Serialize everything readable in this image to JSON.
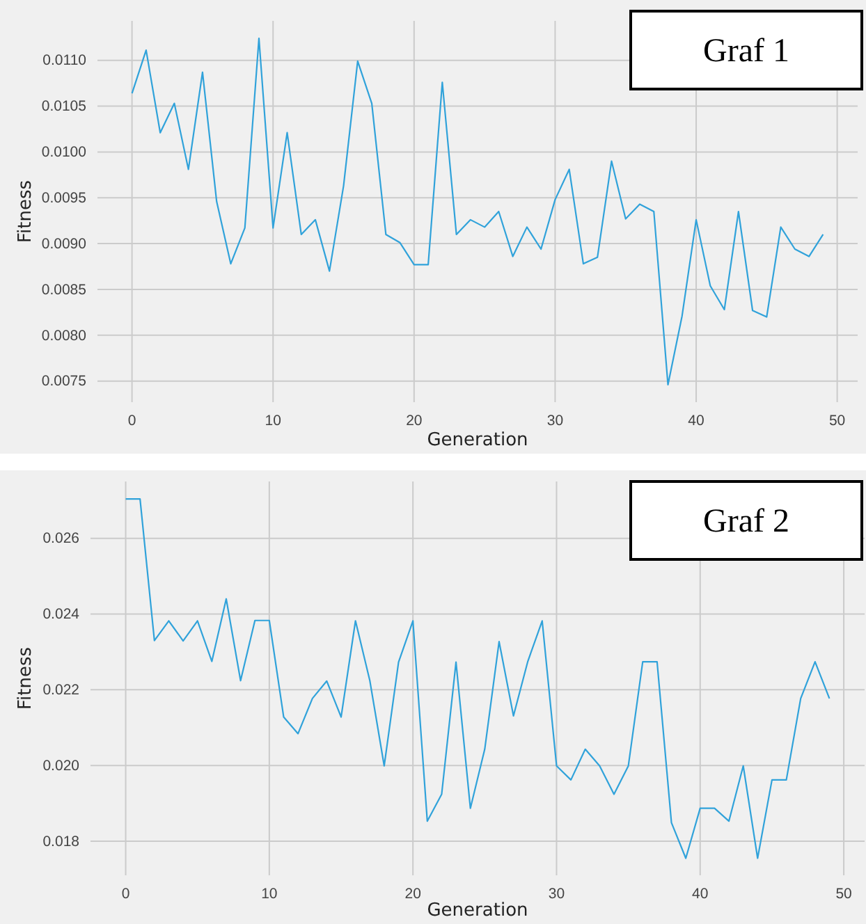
{
  "chart_data": [
    {
      "type": "line",
      "annotations": [
        "Graf 1"
      ],
      "xlabel": "Generation",
      "ylabel": "Fitness",
      "x": [
        0,
        1,
        2,
        3,
        4,
        5,
        6,
        7,
        8,
        9,
        10,
        11,
        12,
        13,
        14,
        15,
        16,
        17,
        18,
        19,
        20,
        21,
        22,
        23,
        24,
        25,
        26,
        27,
        28,
        29,
        30,
        31,
        32,
        33,
        34,
        35,
        36,
        37,
        38,
        39,
        40,
        41,
        42,
        43,
        44,
        45,
        46,
        47,
        48,
        49
      ],
      "series": [
        {
          "color": "#30a2da",
          "values": [
            0.01064,
            0.01111,
            0.01021,
            0.01053,
            0.00981,
            0.01087,
            0.00946,
            0.00878,
            0.00917,
            0.01124,
            0.00917,
            0.01021,
            0.0091,
            0.00926,
            0.0087,
            0.00963,
            0.01099,
            0.01053,
            0.0091,
            0.00901,
            0.00877,
            0.00877,
            0.01076,
            0.0091,
            0.00926,
            0.00918,
            0.00935,
            0.00886,
            0.00918,
            0.00894,
            0.00948,
            0.00981,
            0.00878,
            0.00885,
            0.0099,
            0.00927,
            0.00943,
            0.00935,
            0.00746,
            0.00821,
            0.00926,
            0.00854,
            0.00828,
            0.00935,
            0.00827,
            0.0082,
            0.00918,
            0.00894,
            0.00886,
            0.0091
          ]
        }
      ],
      "xlim": [
        -2.45,
        51.45
      ],
      "xticks": [
        0,
        10,
        20,
        30,
        40,
        50
      ],
      "ylim": [
        0.00727,
        0.01143
      ],
      "yticks": [
        {
          "value": 0.0075,
          "label": "0.0075"
        },
        {
          "value": 0.008,
          "label": "0.0080"
        },
        {
          "value": 0.0085,
          "label": "0.0085"
        },
        {
          "value": 0.009,
          "label": "0.0090"
        },
        {
          "value": 0.0095,
          "label": "0.0095"
        },
        {
          "value": 0.01,
          "label": "0.0100"
        },
        {
          "value": 0.0105,
          "label": "0.0105"
        },
        {
          "value": 0.011,
          "label": "0.0110"
        }
      ],
      "grid": true,
      "line_style": "solid",
      "marker": "none"
    },
    {
      "type": "line",
      "annotations": [
        "Graf 2"
      ],
      "xlabel": "Generation",
      "ylabel": "Fitness",
      "x": [
        0,
        1,
        2,
        3,
        4,
        5,
        6,
        7,
        8,
        9,
        10,
        11,
        12,
        13,
        14,
        15,
        16,
        17,
        18,
        19,
        20,
        21,
        22,
        23,
        24,
        25,
        26,
        27,
        28,
        29,
        30,
        31,
        32,
        33,
        34,
        35,
        36,
        37,
        38,
        39,
        40,
        41,
        42,
        43,
        44,
        45,
        46,
        47,
        48,
        49
      ],
      "series": [
        {
          "color": "#30a2da",
          "values": [
            0.02704,
            0.02704,
            0.0233,
            0.02382,
            0.02329,
            0.02382,
            0.02275,
            0.0244,
            0.02224,
            0.02383,
            0.02383,
            0.02128,
            0.02084,
            0.02177,
            0.02223,
            0.02128,
            0.02382,
            0.02224,
            0.01999,
            0.02273,
            0.02382,
            0.01853,
            0.01924,
            0.02273,
            0.01887,
            0.02043,
            0.02327,
            0.02131,
            0.02275,
            0.02382,
            0.01999,
            0.01962,
            0.02043,
            0.01999,
            0.01924,
            0.01999,
            0.02274,
            0.02274,
            0.01849,
            0.01755,
            0.01887,
            0.01887,
            0.01853,
            0.01999,
            0.01755,
            0.01962,
            0.01962,
            0.02177,
            0.02274,
            0.02177
          ]
        }
      ],
      "xlim": [
        -2.45,
        51.45
      ],
      "xticks": [
        0,
        10,
        20,
        30,
        40,
        50
      ],
      "ylim": [
        0.0171,
        0.0275
      ],
      "yticks": [
        {
          "value": 0.018,
          "label": "0.018"
        },
        {
          "value": 0.02,
          "label": "0.020"
        },
        {
          "value": 0.022,
          "label": "0.022"
        },
        {
          "value": 0.024,
          "label": "0.024"
        },
        {
          "value": 0.026,
          "label": "0.026"
        }
      ],
      "grid": true,
      "line_style": "solid",
      "marker": "none"
    }
  ]
}
